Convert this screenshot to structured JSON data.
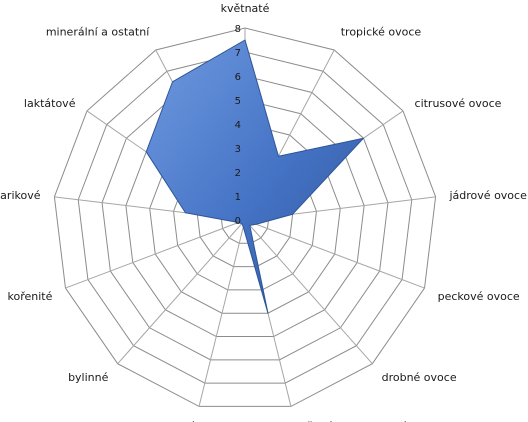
{
  "chart_data": {
    "type": "radar",
    "categories": [
      "květnaté",
      "tropické ovoce",
      "citrusové ovoce",
      "jádrové ovoce",
      "peckové ovoce",
      "drobné ovoce",
      "sušené a kandované ovoce",
      "karamelizované",
      "bylinné",
      "kořenité",
      "barikové",
      "laktátové",
      "minerální a ostatní"
    ],
    "series": [
      {
        "values": [
          7.5,
          3.0,
          6.0,
          2.0,
          0.5,
          0.3,
          4.0,
          0.3,
          0.2,
          0.3,
          2.5,
          5.0,
          6.5
        ]
      }
    ],
    "rlim": [
      0,
      8
    ],
    "ticks": [
      "0",
      "1",
      "2",
      "3",
      "4",
      "5",
      "6",
      "7",
      "8"
    ],
    "grid": true,
    "legend": "none",
    "colors": {
      "series_fill": "#4472c4",
      "series_stroke": "#2e5597",
      "grid": "#8c8c8c",
      "axis": "#a6a6a6"
    }
  }
}
